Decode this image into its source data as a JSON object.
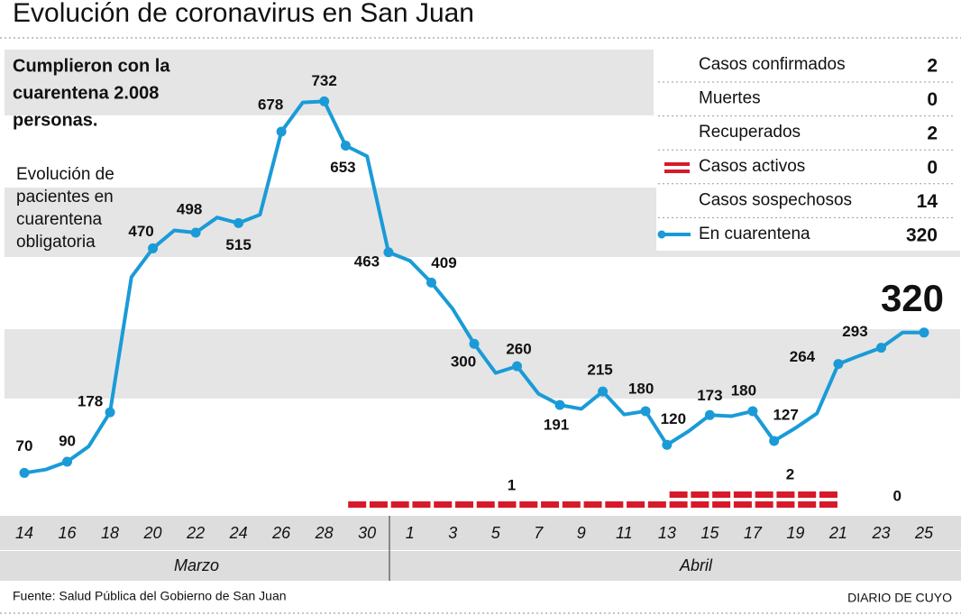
{
  "title": "Evolución de coronavirus en San Juan",
  "annotation": [
    "Cumplieron con la",
    "cuarentena 2.008",
    "personas."
  ],
  "chart_data": {
    "type": "line",
    "label": [
      "Evolución de",
      "pacientes en",
      "cuarentena",
      "obligatoria"
    ],
    "categories": [
      "14",
      null,
      "16",
      null,
      "18",
      null,
      "20",
      null,
      "22",
      null,
      "24",
      null,
      "26",
      null,
      "28",
      null,
      "30",
      null,
      "1",
      null,
      "3",
      null,
      "5",
      null,
      "7",
      null,
      "9",
      null,
      "11",
      null,
      "13",
      null,
      "15",
      null,
      "17",
      null,
      "19",
      null,
      "21",
      null,
      "23",
      null,
      "25"
    ],
    "months": [
      "Marzo",
      "Abril"
    ],
    "ylim": [
      0,
      800
    ],
    "series": [
      {
        "color": "#1a9bd7",
        "values": [
          70,
          76,
          90,
          117,
          178,
          419,
          470,
          502,
          498,
          525,
          515,
          530,
          678,
          730,
          732,
          653,
          634,
          463,
          448,
          409,
          362,
          300,
          248,
          260,
          211,
          191,
          184,
          215,
          174,
          180,
          120,
          144,
          173,
          171,
          180,
          127,
          150,
          176,
          264,
          279,
          293,
          320,
          320
        ],
        "value_labels": [
          "70",
          null,
          "90",
          null,
          "178",
          null,
          "470",
          null,
          "498",
          null,
          "515",
          null,
          "678",
          null,
          "732",
          "653",
          null,
          "463",
          null,
          "409",
          null,
          "300",
          null,
          "260",
          null,
          "191",
          null,
          "215",
          null,
          "180",
          "120",
          null,
          "173",
          null,
          "180",
          "127",
          null,
          null,
          "264",
          null,
          "293",
          null,
          "320"
        ]
      }
    ],
    "active": {
      "color": "#d7192a",
      "values": [
        null,
        null,
        null,
        null,
        null,
        null,
        null,
        null,
        null,
        null,
        null,
        null,
        null,
        null,
        null,
        null,
        1,
        1,
        1,
        1,
        1,
        1,
        1,
        1,
        1,
        1,
        1,
        1,
        1,
        1,
        1,
        2,
        2,
        2,
        2,
        2,
        2,
        2,
        2,
        0,
        0,
        0,
        0
      ],
      "value_labels": [
        null,
        null,
        null,
        null,
        null,
        null,
        null,
        null,
        null,
        null,
        null,
        null,
        null,
        null,
        null,
        null,
        null,
        null,
        null,
        null,
        null,
        null,
        null,
        "1",
        null,
        null,
        null,
        null,
        null,
        null,
        null,
        null,
        null,
        null,
        null,
        null,
        "2",
        null,
        null,
        null,
        null,
        "0",
        null
      ]
    }
  },
  "summary": [
    {
      "label": "Casos confirmados",
      "value": 2
    },
    {
      "label": "Muertes",
      "value": 0
    },
    {
      "label": "Recuperados",
      "value": 2
    },
    {
      "label": "Casos activos",
      "value": 0
    },
    {
      "label": "Casos sospechosos",
      "value": 14
    },
    {
      "label": "En cuarentena",
      "value": 320
    }
  ],
  "source": "Fuente: Salud Pública del Gobierno de San Juan",
  "brand": "DIARIO DE CUYO"
}
